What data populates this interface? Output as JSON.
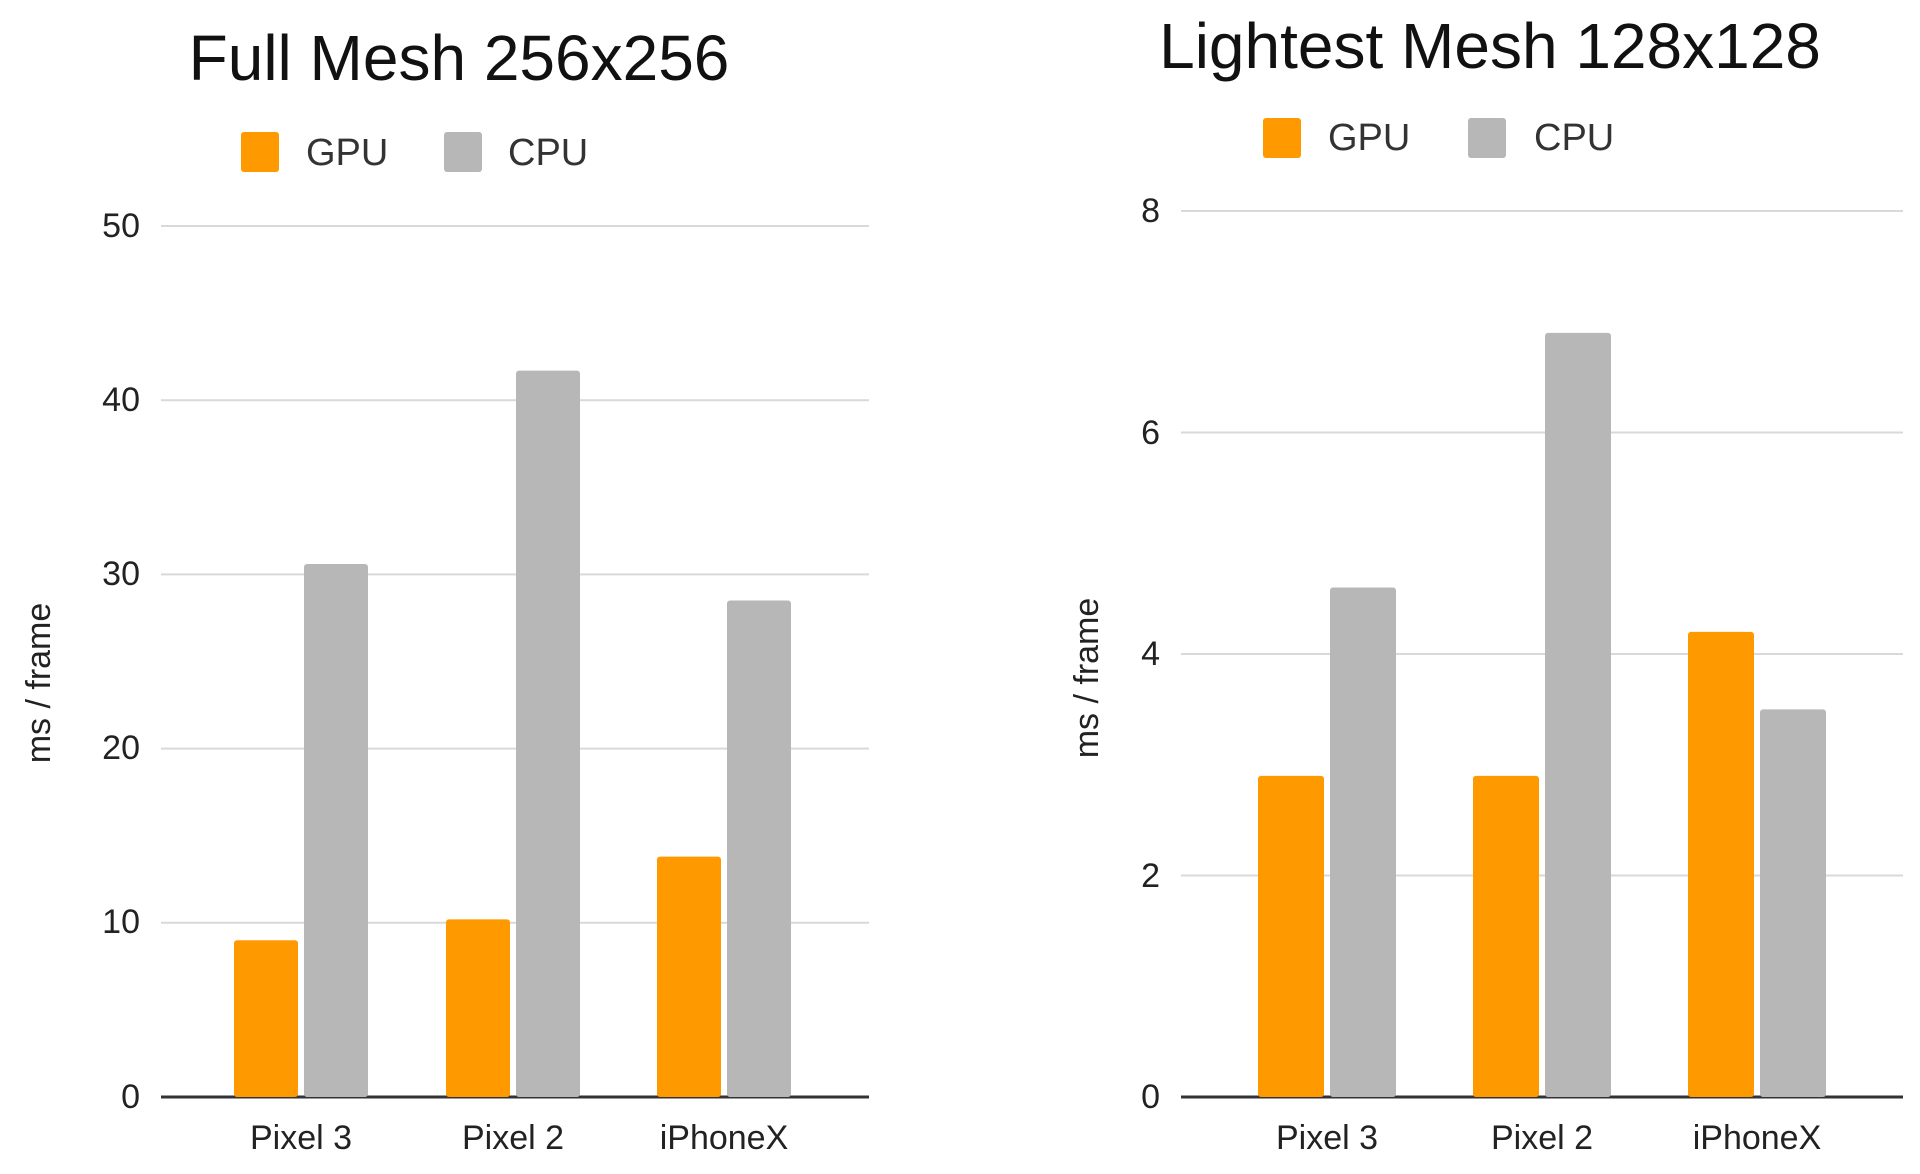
{
  "colors": {
    "GPU": "#ff9900",
    "CPU": "#b7b7b7",
    "grid": "#d9d9d9",
    "axis": "#333333"
  },
  "chart_data": [
    {
      "type": "bar",
      "title": "Full Mesh 256x256",
      "ylabel": "ms / frame",
      "xlabel": "",
      "categories": [
        "Pixel 3",
        "Pixel 2",
        "iPhoneX"
      ],
      "series": [
        {
          "name": "GPU",
          "values": [
            9.0,
            10.2,
            13.8
          ]
        },
        {
          "name": "CPU",
          "values": [
            30.6,
            41.7,
            28.5
          ]
        }
      ],
      "ylim": [
        0,
        50
      ],
      "yticks": [
        "0",
        "10",
        "20",
        "30",
        "40",
        "50"
      ],
      "grid": true,
      "legend": "top"
    },
    {
      "type": "bar",
      "title": "Lightest Mesh 128x128",
      "ylabel": "ms / frame",
      "xlabel": "",
      "categories": [
        "Pixel 3",
        "Pixel 2",
        "iPhoneX"
      ],
      "series": [
        {
          "name": "GPU",
          "values": [
            2.9,
            2.9,
            4.2
          ]
        },
        {
          "name": "CPU",
          "values": [
            4.6,
            6.9,
            3.5
          ]
        }
      ],
      "ylim": [
        0,
        8
      ],
      "yticks": [
        "0",
        "2",
        "4",
        "6",
        "8"
      ],
      "grid": true,
      "legend": "top"
    }
  ]
}
